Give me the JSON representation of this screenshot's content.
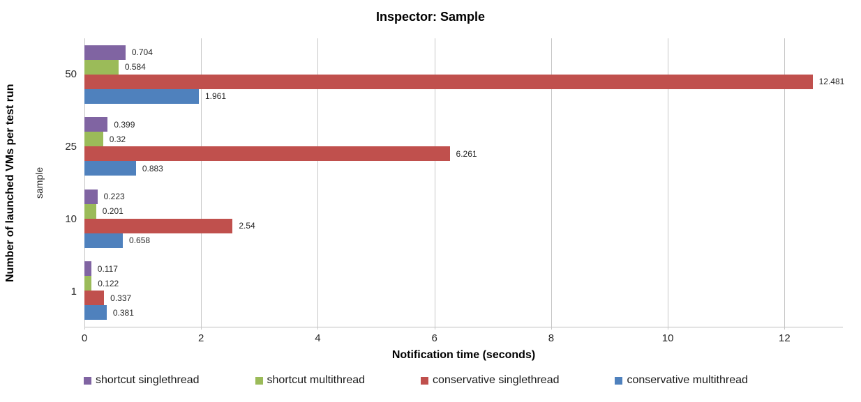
{
  "chart_data": {
    "type": "bar",
    "orientation": "horizontal",
    "title": "Inspector: Sample",
    "xlabel": "Notification time (seconds)",
    "ylabel": "Number of launched VMs per test run",
    "ylabel_secondary": "sample",
    "categories": [
      "50",
      "25",
      "10",
      "1"
    ],
    "series": [
      {
        "name": "shortcut singlethread",
        "color": "#8064A2",
        "values": [
          0.704,
          0.399,
          0.223,
          0.117
        ],
        "labels": [
          "0.704",
          "0.399",
          "0.223",
          "0.117"
        ]
      },
      {
        "name": "shortcut multithread",
        "color": "#9BBB59",
        "values": [
          0.584,
          0.32,
          0.201,
          0.122
        ],
        "labels": [
          "0.584",
          "0.32",
          "0.201",
          "0.122"
        ]
      },
      {
        "name": "conservative singlethread",
        "color": "#C0504D",
        "values": [
          12.481,
          6.261,
          2.54,
          0.337
        ],
        "labels": [
          "12.481",
          "6.261",
          "2.54",
          "0.337"
        ]
      },
      {
        "name": "conservative multithread",
        "color": "#4F81BD",
        "values": [
          1.961,
          0.883,
          0.658,
          0.381
        ],
        "labels": [
          "1.961",
          "0.883",
          "0.658",
          "0.381"
        ]
      }
    ],
    "xlim": [
      0,
      13
    ],
    "xticks": [
      0,
      2,
      4,
      6,
      8,
      10,
      12
    ],
    "grid": "vertical",
    "legend_position": "bottom",
    "colors": {
      "gridline": "#C6C6C6",
      "axis_line": "#BFBFBF",
      "text": "#262626"
    }
  }
}
